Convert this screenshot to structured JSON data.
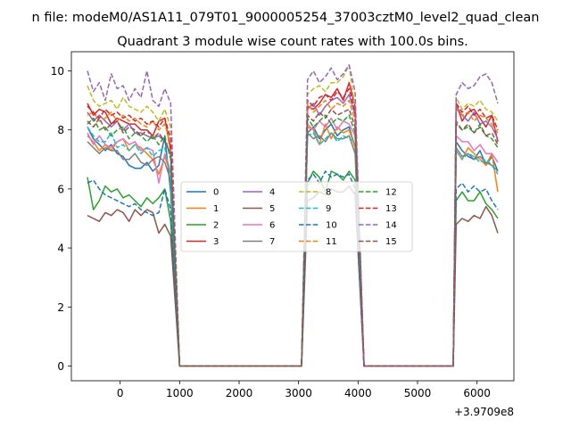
{
  "chart_data": {
    "type": "line",
    "suptitle": "n file: modeM0/AS1A11_079T01_9000005254_37003cztM0_level2_quad_clean",
    "title": "Quadrant 3 module wise count rates with 100.0s bins.",
    "xlabel": "",
    "ylabel": "",
    "x_offset_label": "+3.9709e8",
    "xlim": [
      -820,
      6620
    ],
    "ylim": [
      -0.5,
      10.65
    ],
    "x_ticks": [
      0,
      1000,
      2000,
      3000,
      4000,
      5000,
      6000
    ],
    "x_tick_labels": [
      "0",
      "1000",
      "2000",
      "3000",
      "4000",
      "5000",
      "6000"
    ],
    "y_ticks": [
      0,
      2,
      4,
      6,
      8,
      10
    ],
    "y_tick_labels": [
      "0",
      "2",
      "4",
      "6",
      "8",
      "10"
    ],
    "grid": false,
    "legend": {
      "placement": "center",
      "ncol": 4
    },
    "segments": [
      {
        "x": [
          -550,
          -450,
          -350,
          -250,
          -150,
          -50,
          50,
          150,
          250,
          350,
          450,
          550,
          650,
          750,
          850
        ]
      },
      {
        "x": [
          3150,
          3250,
          3350,
          3450,
          3550,
          3650,
          3750,
          3850,
          3950
        ]
      },
      {
        "x": [
          5650,
          5750,
          5850,
          5950,
          6050,
          6150,
          6250,
          6350
        ]
      }
    ],
    "gap_x": [
      1000,
      3050,
      4100,
      5600
    ],
    "series": [
      {
        "name": "0",
        "color": "#1f77b4",
        "dash": "solid",
        "seg1": [
          8.1,
          7.7,
          7.5,
          7.3,
          7.5,
          7.2,
          7.1,
          6.8,
          6.7,
          6.7,
          6.9,
          6.6,
          6.8,
          7.8,
          5.9
        ],
        "seg2": [
          7.9,
          8.1,
          7.7,
          8.0,
          8.2,
          7.8,
          8.0,
          8.1,
          7.4
        ],
        "seg3": [
          7.6,
          7.3,
          7.1,
          7.0,
          7.3,
          6.8,
          7.1,
          6.6
        ]
      },
      {
        "name": "1",
        "color": "#ff7f0e",
        "dash": "solid",
        "seg1": [
          7.8,
          7.6,
          7.3,
          7.5,
          7.3,
          7.6,
          7.7,
          7.3,
          7.5,
          7.4,
          7.2,
          7.0,
          6.5,
          7.1,
          6.5
        ],
        "seg2": [
          8.1,
          8.0,
          7.5,
          8.2,
          7.7,
          8.1,
          7.9,
          8.0,
          7.4
        ],
        "seg3": [
          7.3,
          7.0,
          7.4,
          7.2,
          7.0,
          6.8,
          7.2,
          5.9
        ]
      },
      {
        "name": "2",
        "color": "#2ca02c",
        "dash": "solid",
        "seg1": [
          6.4,
          5.3,
          5.6,
          6.1,
          5.9,
          6.0,
          5.7,
          5.8,
          5.6,
          5.4,
          5.7,
          5.5,
          5.7,
          6.0,
          4.9
        ],
        "seg2": [
          6.2,
          6.6,
          6.4,
          5.9,
          6.6,
          6.5,
          6.3,
          6.6,
          6.3
        ],
        "seg3": [
          5.6,
          5.9,
          5.6,
          5.6,
          5.9,
          5.5,
          5.3,
          5.0
        ]
      },
      {
        "name": "3",
        "color": "#d62728",
        "dash": "solid",
        "seg1": [
          8.9,
          8.5,
          8.7,
          8.6,
          8.2,
          8.4,
          8.3,
          8.2,
          8.2,
          8.0,
          8.0,
          7.8,
          8.3,
          8.4,
          7.3
        ],
        "seg2": [
          8.8,
          8.7,
          8.9,
          9.2,
          9.1,
          9.4,
          9.0,
          9.6,
          8.8
        ],
        "seg3": [
          8.9,
          8.3,
          8.6,
          8.7,
          8.4,
          8.1,
          8.5,
          7.6
        ]
      },
      {
        "name": "4",
        "color": "#9467bd",
        "dash": "solid",
        "seg1": [
          8.6,
          8.3,
          8.5,
          8.3,
          8.1,
          8.3,
          8.0,
          8.2,
          7.9,
          7.9,
          7.8,
          7.7,
          7.8,
          7.6,
          7.2
        ],
        "seg2": [
          8.7,
          8.9,
          8.5,
          8.8,
          9.0,
          9.1,
          8.9,
          9.2,
          8.5
        ],
        "seg3": [
          8.8,
          8.5,
          8.3,
          8.6,
          8.2,
          8.3,
          8.1,
          7.7
        ]
      },
      {
        "name": "5",
        "color": "#8c564b",
        "dash": "solid",
        "seg1": [
          5.1,
          5.0,
          4.9,
          5.2,
          5.1,
          5.3,
          5.2,
          4.9,
          5.3,
          5.1,
          5.3,
          5.2,
          4.5,
          4.8,
          4.4
        ],
        "seg2": [
          5.6,
          5.7,
          5.9,
          5.8,
          6.0,
          5.9,
          5.9,
          6.1,
          5.8
        ],
        "seg3": [
          4.8,
          5.0,
          4.9,
          5.1,
          5.0,
          5.4,
          5.1,
          4.5
        ]
      },
      {
        "name": "6",
        "color": "#e377c2",
        "dash": "solid",
        "seg1": [
          7.9,
          7.5,
          7.8,
          7.5,
          7.4,
          7.6,
          7.7,
          7.5,
          7.6,
          7.3,
          7.4,
          7.3,
          6.2,
          7.2,
          6.6
        ],
        "seg2": [
          8.2,
          8.0,
          8.3,
          8.1,
          8.4,
          8.0,
          8.3,
          8.2,
          7.8
        ],
        "seg3": [
          7.8,
          7.6,
          7.6,
          7.3,
          7.5,
          7.2,
          7.2,
          6.9
        ]
      },
      {
        "name": "7",
        "color": "#7f7f7f",
        "dash": "solid",
        "seg1": [
          7.6,
          7.4,
          7.2,
          7.4,
          7.3,
          7.3,
          7.0,
          7.0,
          7.2,
          6.9,
          6.8,
          7.0,
          7.1,
          6.9,
          6.3
        ],
        "seg2": [
          7.9,
          7.7,
          7.8,
          7.6,
          7.9,
          7.7,
          7.7,
          7.8,
          7.2
        ],
        "seg3": [
          7.4,
          7.1,
          7.2,
          7.0,
          7.1,
          6.9,
          6.8,
          6.6
        ]
      },
      {
        "name": "8",
        "color": "#bcbd22",
        "dash": "dashed",
        "seg1": [
          9.5,
          9.0,
          8.8,
          8.9,
          9.0,
          8.7,
          9.1,
          8.8,
          8.7,
          8.6,
          8.8,
          8.6,
          8.3,
          8.7,
          8.1
        ],
        "seg2": [
          9.2,
          9.4,
          9.5,
          9.3,
          9.6,
          9.6,
          9.8,
          10.2,
          8.7
        ],
        "seg3": [
          9.1,
          8.7,
          8.9,
          8.8,
          9.0,
          8.7,
          8.6,
          8.3
        ]
      },
      {
        "name": "9",
        "color": "#17becf",
        "dash": "dashed",
        "seg1": [
          8.1,
          7.8,
          7.6,
          7.6,
          7.9,
          7.4,
          7.5,
          7.3,
          7.5,
          7.2,
          7.4,
          7.1,
          7.3,
          7.4,
          6.4
        ],
        "seg2": [
          7.8,
          7.9,
          7.5,
          7.7,
          7.9,
          7.6,
          7.8,
          7.7,
          7.6
        ],
        "seg3": [
          7.3,
          7.0,
          7.2,
          7.1,
          6.9,
          7.0,
          6.8,
          6.5
        ]
      },
      {
        "name": "10",
        "color": "#1f77b4",
        "dash": "dashed",
        "seg1": [
          6.2,
          6.3,
          6.0,
          5.8,
          5.7,
          5.6,
          5.5,
          5.4,
          5.5,
          5.3,
          5.2,
          5.1,
          5.2,
          6.0,
          5.3
        ],
        "seg2": [
          6.3,
          6.5,
          6.2,
          6.6,
          6.4,
          6.5,
          6.4,
          6.5,
          6.0
        ],
        "seg3": [
          6.0,
          6.2,
          5.9,
          6.1,
          5.9,
          6.0,
          5.6,
          5.3
        ]
      },
      {
        "name": "11",
        "color": "#ff7f0e",
        "dash": "dashed",
        "seg1": [
          8.5,
          8.6,
          8.3,
          8.4,
          8.6,
          8.3,
          8.5,
          8.3,
          8.4,
          8.2,
          8.1,
          8.3,
          8.0,
          8.2,
          7.5
        ],
        "seg2": [
          8.9,
          8.6,
          8.8,
          9.0,
          8.7,
          8.9,
          8.8,
          9.0,
          8.3
        ],
        "seg3": [
          8.7,
          8.5,
          8.6,
          8.3,
          8.5,
          8.4,
          8.2,
          7.9
        ]
      },
      {
        "name": "12",
        "color": "#2ca02c",
        "dash": "dashed",
        "seg1": [
          8.2,
          8.4,
          8.0,
          8.1,
          7.8,
          8.0,
          8.1,
          7.7,
          7.9,
          7.8,
          7.6,
          7.8,
          7.5,
          7.8,
          7.0
        ],
        "seg2": [
          8.4,
          8.1,
          8.3,
          8.5,
          8.2,
          8.4,
          8.3,
          8.5,
          7.9
        ],
        "seg3": [
          8.3,
          8.0,
          8.1,
          7.9,
          8.2,
          7.8,
          7.7,
          7.4
        ]
      },
      {
        "name": "13",
        "color": "#d62728",
        "dash": "dashed",
        "seg1": [
          8.8,
          8.6,
          8.4,
          8.7,
          8.5,
          8.6,
          8.4,
          8.5,
          8.3,
          8.4,
          8.2,
          8.3,
          8.1,
          8.4,
          7.7
        ],
        "seg2": [
          9.0,
          8.8,
          9.1,
          9.2,
          9.0,
          9.3,
          9.1,
          9.4,
          8.6
        ],
        "seg3": [
          8.9,
          8.6,
          8.8,
          8.5,
          8.7,
          8.4,
          8.5,
          8.0
        ]
      },
      {
        "name": "14",
        "color": "#9467bd",
        "dash": "dashed",
        "seg1": [
          10.0,
          9.3,
          9.6,
          9.0,
          9.9,
          9.4,
          9.5,
          9.0,
          9.4,
          9.1,
          10.0,
          9.0,
          8.8,
          9.4,
          8.9
        ],
        "seg2": [
          9.7,
          10.0,
          9.6,
          9.8,
          10.1,
          9.7,
          9.9,
          10.2,
          9.3
        ],
        "seg3": [
          9.2,
          9.6,
          9.4,
          9.5,
          9.8,
          9.9,
          9.6,
          8.9
        ]
      },
      {
        "name": "15",
        "color": "#8c564b",
        "dash": "dashed",
        "seg1": [
          8.3,
          8.1,
          8.4,
          8.0,
          8.2,
          8.3,
          7.9,
          8.1,
          8.0,
          7.8,
          8.0,
          7.7,
          7.9,
          7.6,
          7.2
        ],
        "seg2": [
          8.5,
          8.3,
          8.6,
          8.4,
          8.7,
          8.5,
          8.6,
          8.7,
          8.1
        ],
        "seg3": [
          8.2,
          8.0,
          8.2,
          7.9,
          8.1,
          7.8,
          7.9,
          7.5
        ]
      }
    ]
  }
}
